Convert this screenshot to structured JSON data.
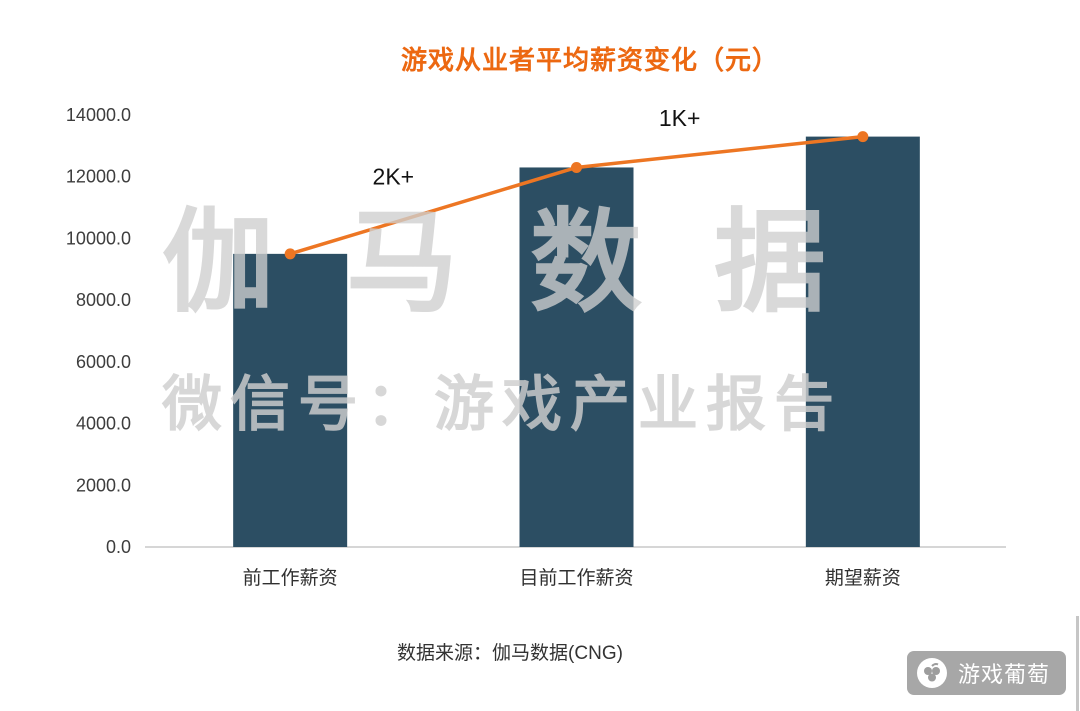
{
  "chart_data": {
    "type": "bar",
    "title": "游戏从业者平均薪资变化（元）",
    "categories": [
      "前工作薪资",
      "目前工作薪资",
      "期望薪资"
    ],
    "values": [
      9500,
      12300,
      13300
    ],
    "overlay_line": {
      "type": "line",
      "values": [
        9500,
        12300,
        13300
      ],
      "annotations": [
        {
          "between": [
            0,
            1
          ],
          "label": "2K+"
        },
        {
          "between": [
            1,
            2
          ],
          "label": "1K+"
        }
      ]
    },
    "xlabel": "",
    "ylabel": "",
    "ylim": [
      0,
      14000
    ],
    "ytick_step": 2000,
    "ytick_decimals": 1,
    "grid": false,
    "legend": "none",
    "colors": {
      "bar": "#2c4e63",
      "line": "#ed7623",
      "title": "#ec6811"
    }
  },
  "watermark": {
    "line1": "伽马数据",
    "line2": "微信号：游戏产业报告"
  },
  "source_text": "数据来源：伽马数据(CNG)",
  "logo": {
    "text": "游戏葡萄"
  }
}
